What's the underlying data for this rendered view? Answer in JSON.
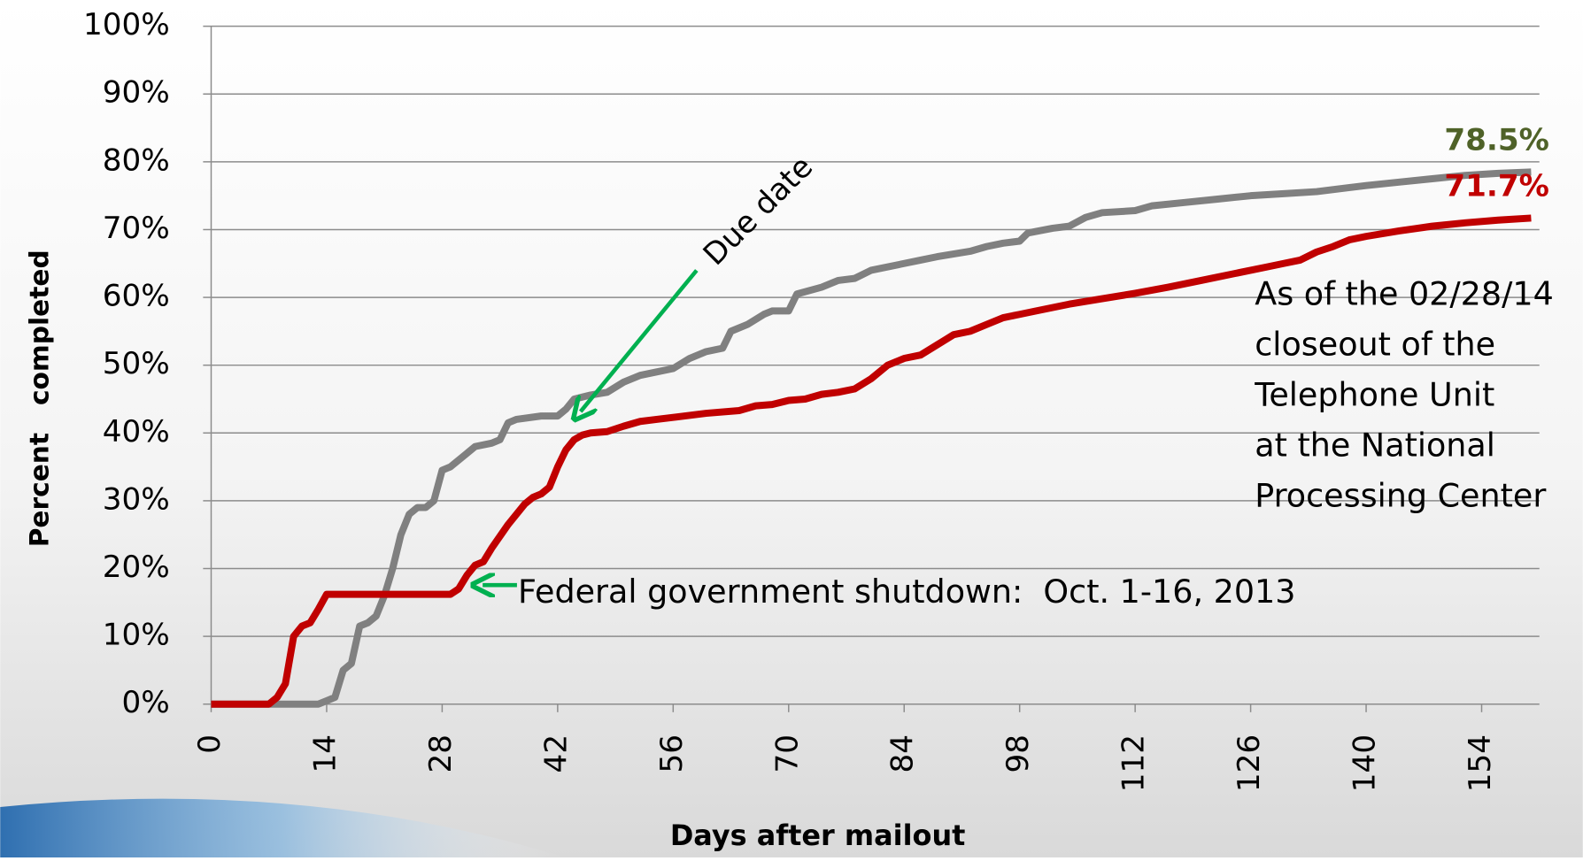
{
  "chart_data": {
    "type": "line",
    "y_label": "Percent   completed",
    "x_label": "Days after mailout",
    "xlim": [
      0,
      161
    ],
    "xticks": [
      0,
      14,
      28,
      42,
      56,
      70,
      84,
      98,
      112,
      126,
      140,
      154
    ],
    "ylim": [
      0,
      100
    ],
    "yticks": [
      {
        "value": 0,
        "label": "0%"
      },
      {
        "value": 10,
        "label": "10%"
      },
      {
        "value": 20,
        "label": "20%"
      },
      {
        "value": 30,
        "label": "30%"
      },
      {
        "value": 40,
        "label": "40%"
      },
      {
        "value": 50,
        "label": "50%"
      },
      {
        "value": 60,
        "label": "60%"
      },
      {
        "value": 70,
        "label": "70%"
      },
      {
        "value": 80,
        "label": "80%"
      },
      {
        "value": 90,
        "label": "90%"
      },
      {
        "value": 100,
        "label": "100%"
      }
    ],
    "grid": true,
    "series": [
      {
        "color": "#808080",
        "label_color": "#4f6228",
        "x": [
          0,
          13,
          14,
          15,
          16,
          17,
          18,
          19,
          20,
          21,
          22,
          23,
          24,
          25,
          26,
          27,
          28,
          29,
          30,
          31,
          32,
          34,
          35,
          36,
          37,
          40,
          42,
          43,
          44,
          46,
          48,
          50,
          52,
          54,
          56,
          58,
          60,
          62,
          63,
          65,
          67,
          68,
          70,
          71,
          74,
          76,
          78,
          80,
          84,
          86,
          88,
          92,
          94,
          96,
          98,
          99,
          102,
          104,
          106,
          108,
          112,
          114,
          118,
          122,
          126,
          130,
          134,
          138,
          140,
          144,
          148,
          152,
          156,
          160
        ],
        "values": [
          0,
          0,
          0.5,
          1,
          5,
          6,
          11.5,
          12,
          13,
          16,
          20,
          25,
          28,
          29,
          29,
          30,
          34.5,
          35,
          36,
          37,
          38,
          38.5,
          39,
          41.5,
          42,
          42.5,
          42.5,
          43.5,
          45,
          45.6,
          46,
          47.5,
          48.5,
          49,
          49.5,
          51,
          52,
          52.5,
          55,
          56,
          57.5,
          58,
          58,
          60.5,
          61.5,
          62.5,
          62.8,
          64,
          65,
          65.5,
          66,
          66.8,
          67.5,
          68,
          68.3,
          69.5,
          70.2,
          70.5,
          71.8,
          72.5,
          72.8,
          73.5,
          74,
          74.5,
          75,
          75.3,
          75.6,
          76.2,
          76.5,
          77,
          77.5,
          78,
          78.3,
          78.5
        ],
        "value_labels": [
          null,
          null,
          null,
          null,
          null,
          null,
          null,
          null,
          null,
          null,
          null,
          null,
          null,
          null,
          null,
          null,
          null,
          null,
          null,
          null,
          null,
          null,
          null,
          null,
          null,
          null,
          null,
          null,
          null,
          null,
          null,
          null,
          null,
          null,
          null,
          null,
          null,
          null,
          null,
          null,
          null,
          null,
          null,
          null,
          null,
          null,
          null,
          null,
          null,
          null,
          null,
          null,
          null,
          null,
          null,
          null,
          null,
          null,
          null,
          null,
          null,
          null,
          null,
          null,
          null,
          null,
          null,
          null,
          null,
          null,
          null,
          null,
          null,
          "78.5%"
        ]
      },
      {
        "color": "#c00000",
        "label_color": "#c00000",
        "x": [
          0,
          7,
          8,
          9,
          10,
          11,
          12,
          13,
          14,
          29,
          30,
          31,
          32,
          33,
          34,
          36,
          38,
          39,
          40,
          41,
          42,
          43,
          44,
          45,
          46,
          48,
          50,
          52,
          54,
          56,
          60,
          64,
          66,
          68,
          70,
          72,
          74,
          76,
          78,
          80,
          82,
          84,
          86,
          88,
          90,
          92,
          94,
          96,
          98,
          100,
          104,
          108,
          112,
          116,
          120,
          124,
          128,
          130,
          132,
          134,
          136,
          138,
          140,
          144,
          148,
          152,
          156,
          160
        ],
        "values": [
          0,
          0,
          1,
          3,
          10,
          11.5,
          12,
          14,
          16.2,
          16.2,
          17,
          19,
          20.5,
          21,
          23,
          26.5,
          29.5,
          30.5,
          31,
          32,
          35,
          37.5,
          39,
          39.7,
          40,
          40.2,
          41,
          41.7,
          42,
          42.3,
          42.9,
          43.3,
          44,
          44.2,
          44.8,
          45,
          45.7,
          46,
          46.5,
          48,
          50,
          51,
          51.5,
          53,
          54.5,
          55,
          56,
          57,
          57.5,
          58,
          59,
          59.8,
          60.6,
          61.5,
          62.5,
          63.5,
          64.5,
          65,
          65.5,
          66.7,
          67.5,
          68.5,
          69,
          69.8,
          70.5,
          71,
          71.4,
          71.7
        ],
        "value_labels": [
          null,
          null,
          null,
          null,
          null,
          null,
          null,
          null,
          null,
          null,
          null,
          null,
          null,
          null,
          null,
          null,
          null,
          null,
          null,
          null,
          null,
          null,
          null,
          null,
          null,
          null,
          null,
          null,
          null,
          null,
          null,
          null,
          null,
          null,
          null,
          null,
          null,
          null,
          null,
          null,
          null,
          null,
          null,
          null,
          null,
          null,
          null,
          null,
          null,
          null,
          null,
          null,
          null,
          null,
          null,
          null,
          null,
          null,
          null,
          null,
          null,
          null,
          null,
          null,
          null,
          null,
          null,
          "71.7%"
        ]
      }
    ],
    "annotations": {
      "due_date": "Due date",
      "shutdown": "Federal government shutdown:  Oct. 1-16, 2013",
      "note": [
        "As of the 02/28/14",
        "closeout of the",
        "Telephone Unit",
        "at the National",
        "Processing Center"
      ]
    }
  }
}
